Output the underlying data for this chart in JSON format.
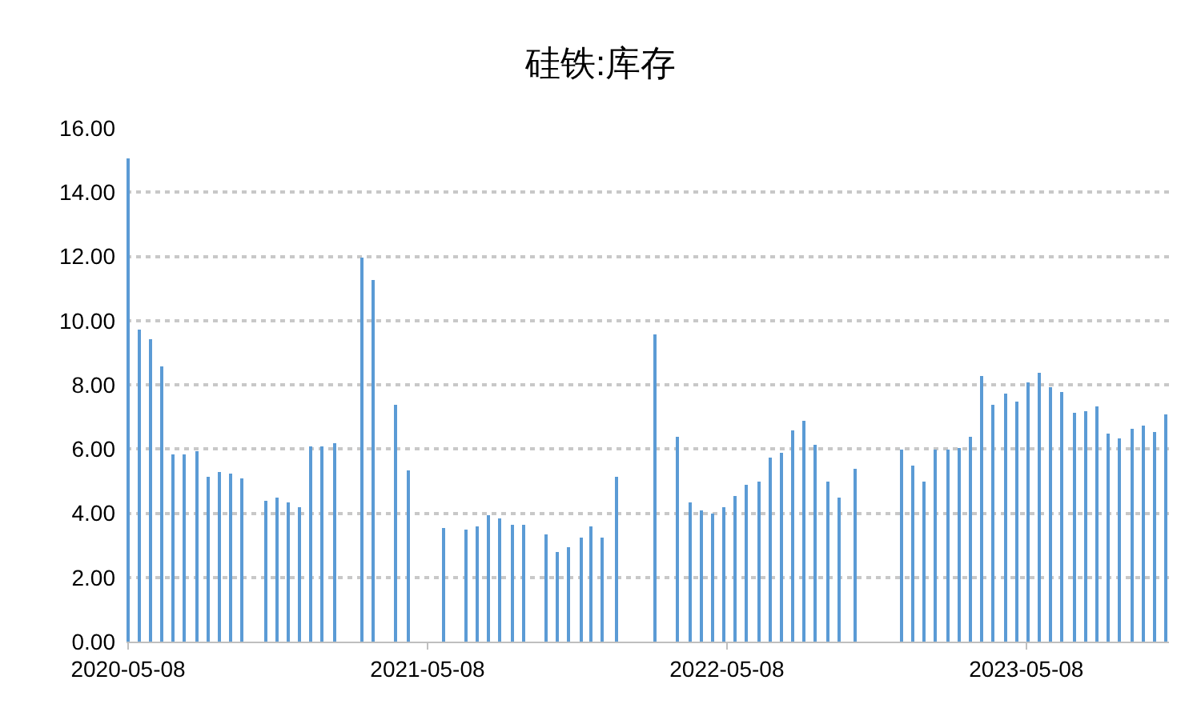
{
  "chart_data": {
    "type": "bar",
    "title": "硅铁:库存",
    "color": "#5b9bd5",
    "x": [
      "2020-05-08",
      "2020-05-22",
      "2020-06-04",
      "2020-06-18",
      "2020-07-02",
      "2020-07-15",
      "2020-07-31",
      "2020-08-14",
      "2020-08-27",
      "2020-09-10",
      "2020-09-24",
      "2020-10-24",
      "2020-11-06",
      "2020-11-19",
      "2020-12-03",
      "2020-12-17",
      "2020-12-30",
      "2021-01-15",
      "2021-02-17",
      "2021-03-03",
      "2021-03-30",
      "2021-04-15",
      "2021-05-28",
      "2021-06-24",
      "2021-07-08",
      "2021-07-21",
      "2021-08-04",
      "2021-08-20",
      "2021-09-02",
      "2021-09-30",
      "2021-10-13",
      "2021-10-27",
      "2021-11-11",
      "2021-11-23",
      "2021-12-07",
      "2021-12-24",
      "2022-02-09",
      "2022-03-09",
      "2022-03-24",
      "2022-04-07",
      "2022-04-21",
      "2022-05-04",
      "2022-05-18",
      "2022-06-01",
      "2022-06-16",
      "2022-06-30",
      "2022-07-13",
      "2022-07-27",
      "2022-08-10",
      "2022-08-23",
      "2022-09-08",
      "2022-09-22",
      "2022-10-11",
      "2022-12-07",
      "2022-12-21",
      "2023-01-03",
      "2023-01-17",
      "2023-02-01",
      "2023-02-15",
      "2023-03-01",
      "2023-03-14",
      "2023-03-28",
      "2023-04-13",
      "2023-04-26",
      "2023-05-10",
      "2023-05-24",
      "2023-06-06",
      "2023-06-20",
      "2023-07-06",
      "2023-07-19",
      "2023-08-02",
      "2023-08-16",
      "2023-08-29",
      "2023-09-14",
      "2023-09-28",
      "2023-10-11",
      "2023-10-25"
    ],
    "values": [
      15.05,
      9.72,
      9.42,
      8.57,
      5.82,
      5.82,
      5.92,
      5.12,
      5.27,
      5.22,
      5.07,
      4.37,
      4.47,
      4.32,
      4.17,
      6.07,
      6.07,
      6.17,
      11.98,
      11.27,
      7.37,
      5.32,
      3.52,
      3.47,
      3.57,
      3.92,
      3.82,
      3.62,
      3.62,
      3.32,
      2.77,
      2.92,
      3.22,
      3.57,
      3.22,
      5.12,
      9.57,
      6.37,
      4.32,
      4.07,
      3.97,
      4.17,
      4.52,
      4.87,
      4.97,
      5.72,
      5.87,
      6.57,
      6.87,
      6.12,
      4.97,
      4.47,
      5.37,
      5.97,
      5.47,
      4.97,
      5.97,
      5.97,
      6.02,
      6.37,
      8.27,
      7.37,
      7.72,
      7.47,
      8.07,
      8.37,
      7.92,
      7.77,
      7.12,
      7.17,
      7.32,
      6.47,
      6.32,
      6.62,
      6.72,
      6.52,
      7.07
    ],
    "xlim": [
      "2020-05-06",
      "2023-10-29"
    ],
    "xticks": [
      "2020-05-08",
      "2021-05-08",
      "2022-05-08",
      "2023-05-08"
    ],
    "ylim": [
      0,
      16
    ],
    "yticks": [
      {
        "value": 0,
        "label": "0.00"
      },
      {
        "value": 2,
        "label": "2.00"
      },
      {
        "value": 4,
        "label": "4.00"
      },
      {
        "value": 6,
        "label": "6.00"
      },
      {
        "value": 8,
        "label": "8.00"
      },
      {
        "value": 10,
        "label": "10.00"
      },
      {
        "value": 12,
        "label": "12.00"
      },
      {
        "value": 14,
        "label": "14.00"
      },
      {
        "value": 16,
        "label": "16.00"
      }
    ],
    "grid": "y"
  }
}
